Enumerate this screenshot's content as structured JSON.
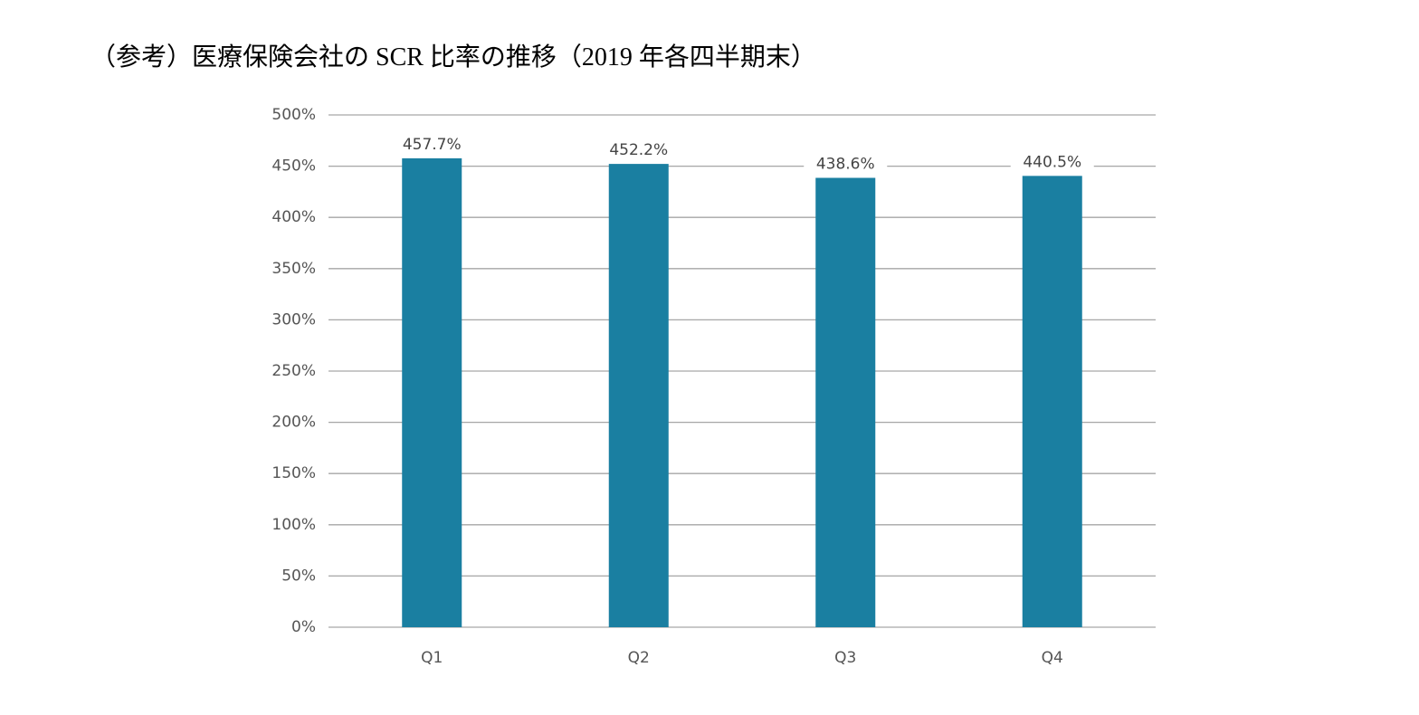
{
  "chart_data": {
    "type": "bar",
    "title": "（参考）医療保険会社の SCR 比率の推移（2019 年各四半期末）",
    "categories": [
      "Q1",
      "Q2",
      "Q3",
      "Q4"
    ],
    "values": [
      457.7,
      452.2,
      438.6,
      440.5
    ],
    "value_labels": [
      "457.7%",
      "452.2%",
      "438.6%",
      "440.5%"
    ],
    "color": "#1a7fa1",
    "ylim": [
      0,
      500
    ],
    "yticks": [
      {
        "value": 0,
        "label": "0%"
      },
      {
        "value": 50,
        "label": "50%"
      },
      {
        "value": 100,
        "label": "100%"
      },
      {
        "value": 150,
        "label": "150%"
      },
      {
        "value": 200,
        "label": "200%"
      },
      {
        "value": 250,
        "label": "250%"
      },
      {
        "value": 300,
        "label": "300%"
      },
      {
        "value": 350,
        "label": "350%"
      },
      {
        "value": 400,
        "label": "400%"
      },
      {
        "value": 450,
        "label": "450%"
      },
      {
        "value": 500,
        "label": "500%"
      }
    ],
    "grid": true
  }
}
